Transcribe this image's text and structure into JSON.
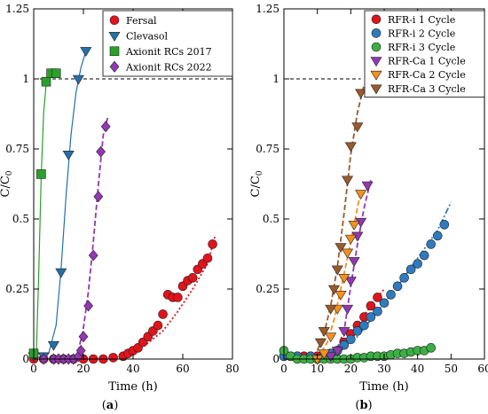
{
  "chart_data": [
    {
      "type": "line",
      "panel_label": "(a)",
      "xlabel": "Time (h)",
      "ylabel": "C/C0",
      "xlim": [
        0,
        80
      ],
      "ylim": [
        0,
        1.25
      ],
      "xticks": [
        "0",
        "20",
        "40",
        "60",
        "80"
      ],
      "yticks": [
        "0",
        "0.25",
        "0.5",
        "0.75",
        "1",
        "1.25"
      ],
      "reference_line": {
        "y": 1,
        "style": "dashed"
      },
      "legend_position": "top-right",
      "grid": false,
      "series": [
        {
          "name": "Fersal",
          "color": "#e3131b",
          "marker": "circle",
          "fit_style": "dotted",
          "points": [
            [
              0,
              0.0
            ],
            [
              4,
              0.0
            ],
            [
              8,
              0.0
            ],
            [
              12,
              0.0
            ],
            [
              16,
              0.0
            ],
            [
              20,
              0.0
            ],
            [
              24,
              0.0
            ],
            [
              28,
              0.0
            ],
            [
              32,
              0.005
            ],
            [
              36,
              0.01
            ],
            [
              38,
              0.02
            ],
            [
              40,
              0.03
            ],
            [
              42,
              0.04
            ],
            [
              44,
              0.06
            ],
            [
              46,
              0.08
            ],
            [
              48,
              0.1
            ],
            [
              50,
              0.12
            ],
            [
              52,
              0.16
            ],
            [
              54,
              0.23
            ],
            [
              56,
              0.22
            ],
            [
              58,
              0.22
            ],
            [
              60,
              0.26
            ],
            [
              62,
              0.28
            ],
            [
              64,
              0.29
            ],
            [
              66,
              0.32
            ],
            [
              68,
              0.34
            ],
            [
              70,
              0.36
            ],
            [
              72,
              0.41
            ]
          ],
          "fit": [
            [
              36,
              0.0
            ],
            [
              45,
              0.05
            ],
            [
              52,
              0.1
            ],
            [
              58,
              0.17
            ],
            [
              64,
              0.25
            ],
            [
              70,
              0.34
            ],
            [
              73,
              0.44
            ]
          ]
        },
        {
          "name": "Clevasol",
          "color": "#2470a8",
          "marker": "triangle-down",
          "fit_style": "solid",
          "points": [
            [
              0,
              0.01
            ],
            [
              4,
              0.01
            ],
            [
              8,
              0.05
            ],
            [
              11,
              0.31
            ],
            [
              14,
              0.73
            ],
            [
              18,
              1.0
            ],
            [
              21,
              1.1
            ]
          ],
          "fit": [
            [
              0,
              0.0
            ],
            [
              6,
              0.02
            ],
            [
              9,
              0.12
            ],
            [
              11,
              0.32
            ],
            [
              13,
              0.58
            ],
            [
              15,
              0.8
            ],
            [
              17,
              0.95
            ],
            [
              19,
              1.04
            ],
            [
              21,
              1.1
            ]
          ]
        },
        {
          "name": "Axionit RCs 2017",
          "color": "#2aa02b",
          "marker": "square",
          "fit_style": "solid",
          "points": [
            [
              0,
              0.02
            ],
            [
              3,
              0.66
            ],
            [
              5,
              0.99
            ],
            [
              7,
              1.02
            ],
            [
              9,
              1.02
            ]
          ],
          "fit": [
            [
              1,
              0.0
            ],
            [
              2,
              0.3
            ],
            [
              3,
              0.65
            ],
            [
              4,
              0.88
            ],
            [
              5,
              0.98
            ],
            [
              7,
              1.02
            ],
            [
              9,
              1.03
            ]
          ]
        },
        {
          "name": "Axionit RCs 2022",
          "color": "#9437b2",
          "marker": "diamond",
          "fit_style": "dashed",
          "points": [
            [
              4,
              0.0
            ],
            [
              8,
              0.0
            ],
            [
              10,
              0.0
            ],
            [
              12,
              0.0
            ],
            [
              14,
              0.0
            ],
            [
              16,
              0.0
            ],
            [
              18,
              0.01
            ],
            [
              19,
              0.03
            ],
            [
              20,
              0.08
            ],
            [
              22,
              0.19
            ],
            [
              24,
              0.37
            ],
            [
              26,
              0.58
            ],
            [
              27,
              0.74
            ],
            [
              29,
              0.83
            ]
          ],
          "fit": [
            [
              16,
              0.0
            ],
            [
              18,
              0.03
            ],
            [
              20,
              0.11
            ],
            [
              22,
              0.24
            ],
            [
              24,
              0.42
            ],
            [
              26,
              0.62
            ],
            [
              28,
              0.8
            ],
            [
              30,
              0.87
            ]
          ]
        }
      ]
    },
    {
      "type": "line",
      "panel_label": "(b)",
      "xlabel": "Time (h)",
      "ylabel": "C/C0",
      "xlim": [
        0,
        60
      ],
      "ylim": [
        0,
        1.25
      ],
      "xticks": [
        "0",
        "10",
        "20",
        "30",
        "40",
        "50",
        "60"
      ],
      "yticks": [
        "0",
        "0.25",
        "0.5",
        "0.75",
        "1",
        "1.25"
      ],
      "reference_line": {
        "y": 1,
        "style": "dashed",
        "x_end": 23
      },
      "legend_position": "top-right",
      "grid": false,
      "series": [
        {
          "name": "RFR-i 1 Cycle",
          "color": "#e3131b",
          "marker": "circle",
          "fit_style": "dotted",
          "points": [
            [
              0,
              0.01
            ],
            [
              2,
              0.01
            ],
            [
              4,
              0.01
            ],
            [
              6,
              0.01
            ],
            [
              8,
              0.01
            ],
            [
              10,
              0.01
            ],
            [
              12,
              0.01
            ],
            [
              14,
              0.02
            ],
            [
              16,
              0.03
            ],
            [
              18,
              0.06
            ],
            [
              20,
              0.09
            ],
            [
              22,
              0.12
            ],
            [
              24,
              0.15
            ],
            [
              26,
              0.19
            ],
            [
              28,
              0.22
            ]
          ],
          "fit": [
            [
              10,
              0.0
            ],
            [
              14,
              0.02
            ],
            [
              18,
              0.06
            ],
            [
              22,
              0.12
            ],
            [
              26,
              0.19
            ],
            [
              30,
              0.25
            ]
          ]
        },
        {
          "name": "RFR-i 2 Cycle",
          "color": "#2f7bbf",
          "marker": "circle",
          "fit_style": "dashdot",
          "points": [
            [
              0,
              0.01
            ],
            [
              4,
              0.01
            ],
            [
              8,
              0.01
            ],
            [
              12,
              0.01
            ],
            [
              14,
              0.02
            ],
            [
              16,
              0.03
            ],
            [
              18,
              0.05
            ],
            [
              20,
              0.07
            ],
            [
              22,
              0.1
            ],
            [
              24,
              0.12
            ],
            [
              26,
              0.15
            ],
            [
              28,
              0.17
            ],
            [
              30,
              0.2
            ],
            [
              32,
              0.23
            ],
            [
              34,
              0.26
            ],
            [
              36,
              0.29
            ],
            [
              38,
              0.32
            ],
            [
              40,
              0.34
            ],
            [
              42,
              0.37
            ],
            [
              44,
              0.41
            ],
            [
              46,
              0.44
            ],
            [
              48,
              0.48
            ]
          ],
          "fit": [
            [
              10,
              0.0
            ],
            [
              16,
              0.02
            ],
            [
              22,
              0.08
            ],
            [
              28,
              0.17
            ],
            [
              34,
              0.26
            ],
            [
              40,
              0.36
            ],
            [
              46,
              0.46
            ],
            [
              50,
              0.56
            ]
          ]
        },
        {
          "name": "RFR-i 3 Cycle",
          "color": "#3cb043",
          "marker": "circle",
          "fit_style": "none",
          "points": [
            [
              0,
              0.03
            ],
            [
              2,
              0.01
            ],
            [
              4,
              0.0
            ],
            [
              6,
              0.0
            ],
            [
              8,
              0.0
            ],
            [
              10,
              0.0
            ],
            [
              12,
              0.0
            ],
            [
              14,
              0.0
            ],
            [
              16,
              0.0
            ],
            [
              18,
              0.0
            ],
            [
              20,
              0.0
            ],
            [
              22,
              0.005
            ],
            [
              24,
              0.005
            ],
            [
              26,
              0.01
            ],
            [
              28,
              0.01
            ],
            [
              30,
              0.01
            ],
            [
              32,
              0.015
            ],
            [
              34,
              0.02
            ],
            [
              36,
              0.02
            ],
            [
              38,
              0.025
            ],
            [
              40,
              0.03
            ],
            [
              42,
              0.03
            ],
            [
              44,
              0.04
            ]
          ],
          "fit": []
        },
        {
          "name": "RFR-Ca 1 Cycle",
          "color": "#9437b2",
          "marker": "triangle-down",
          "fit_style": "dashed",
          "points": [
            [
              10,
              0.0
            ],
            [
              14,
              0.01
            ],
            [
              16,
              0.03
            ],
            [
              18,
              0.1
            ],
            [
              19,
              0.18
            ],
            [
              20,
              0.28
            ],
            [
              21,
              0.35
            ],
            [
              22,
              0.44
            ],
            [
              23,
              0.49
            ],
            [
              25,
              0.62
            ]
          ],
          "fit": [
            [
              12,
              0.0
            ],
            [
              16,
              0.04
            ],
            [
              18,
              0.1
            ],
            [
              20,
              0.26
            ],
            [
              22,
              0.41
            ],
            [
              24,
              0.54
            ],
            [
              26,
              0.64
            ]
          ]
        },
        {
          "name": "RFR-Ca 2 Cycle",
          "color": "#f5901e",
          "marker": "triangle-down",
          "fit_style": "dashed",
          "points": [
            [
              10,
              0.0
            ],
            [
              12,
              0.02
            ],
            [
              14,
              0.08
            ],
            [
              16,
              0.18
            ],
            [
              17,
              0.23
            ],
            [
              18,
              0.29
            ],
            [
              19,
              0.38
            ],
            [
              20,
              0.43
            ],
            [
              21,
              0.48
            ],
            [
              23,
              0.59
            ]
          ],
          "fit": [
            [
              10,
              0.0
            ],
            [
              13,
              0.06
            ],
            [
              15,
              0.14
            ],
            [
              17,
              0.25
            ],
            [
              19,
              0.36
            ],
            [
              21,
              0.48
            ],
            [
              23,
              0.6
            ]
          ]
        },
        {
          "name": "RFR-Ca 3 Cycle",
          "color": "#9a5a2a",
          "marker": "triangle-down",
          "fit_style": "dashed",
          "points": [
            [
              11,
              0.06
            ],
            [
              12,
              0.1
            ],
            [
              14,
              0.18
            ],
            [
              15,
              0.25
            ],
            [
              16,
              0.32
            ],
            [
              17,
              0.4
            ],
            [
              19,
              0.64
            ],
            [
              20,
              0.76
            ],
            [
              22,
              0.83
            ],
            [
              23,
              0.95
            ]
          ],
          "fit": [
            [
              10,
              0.03
            ],
            [
              12,
              0.09
            ],
            [
              14,
              0.19
            ],
            [
              16,
              0.33
            ],
            [
              18,
              0.52
            ],
            [
              20,
              0.73
            ],
            [
              22,
              0.88
            ],
            [
              24,
              0.98
            ]
          ]
        }
      ]
    }
  ]
}
